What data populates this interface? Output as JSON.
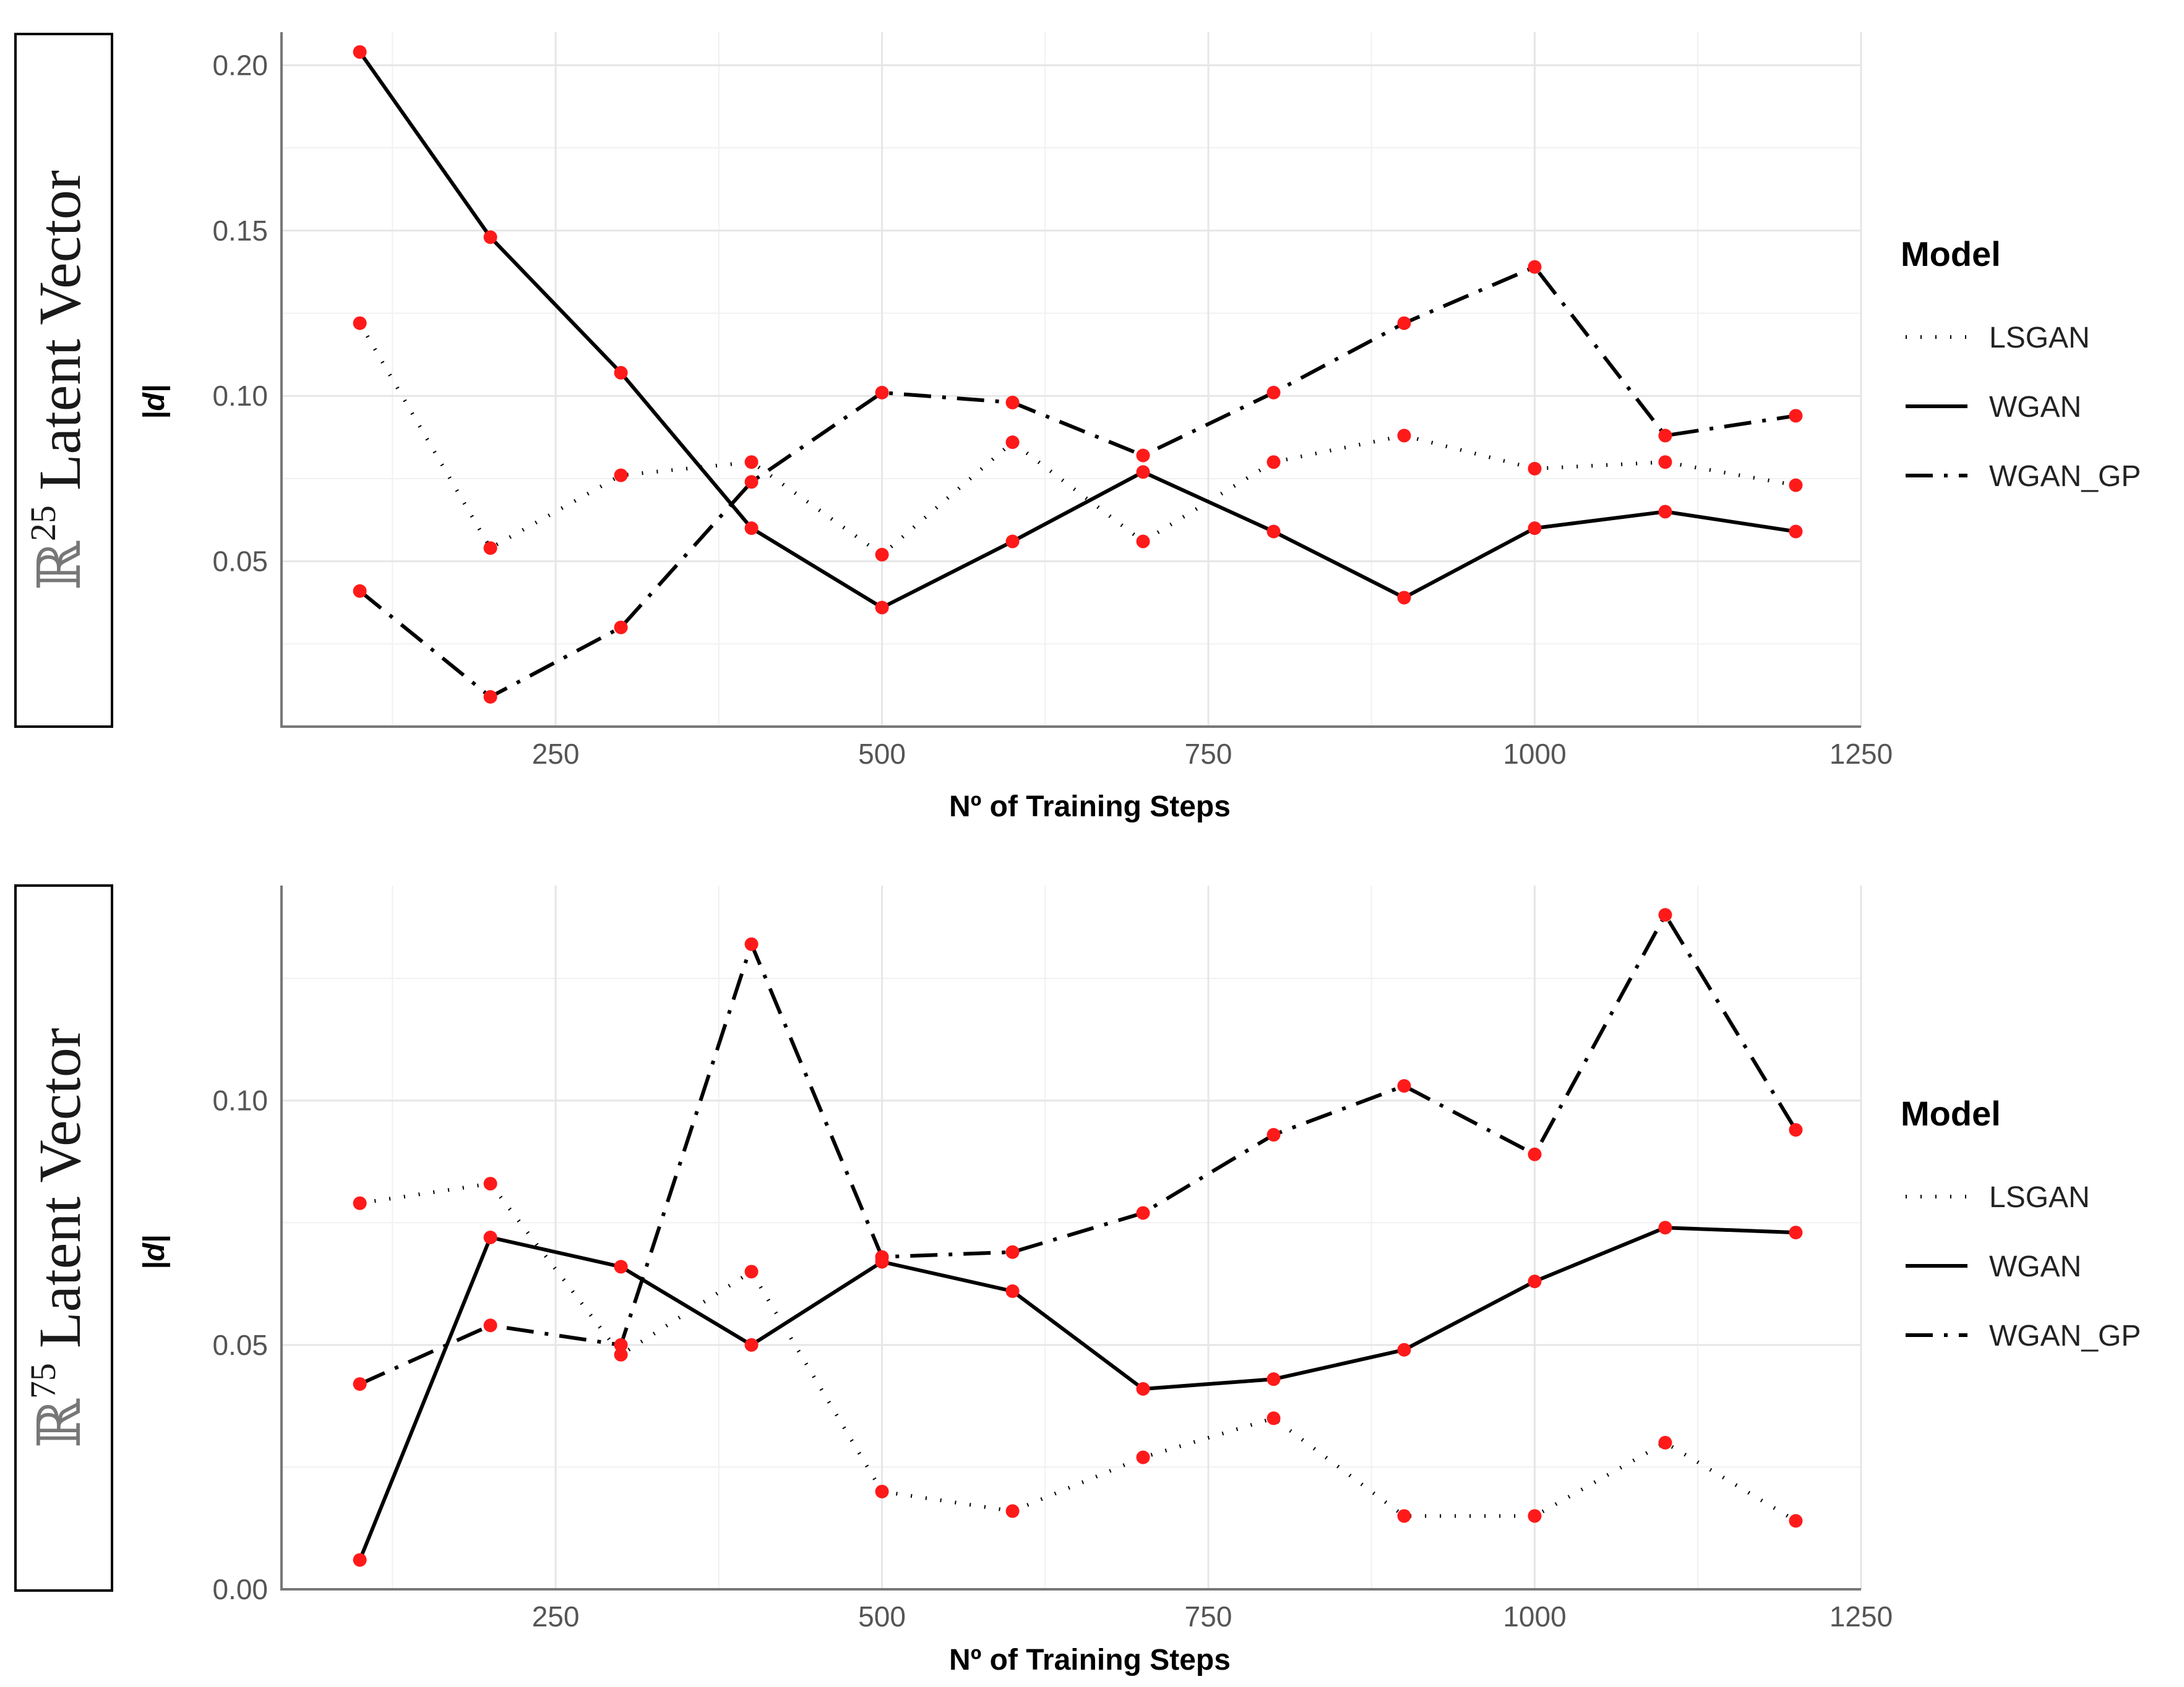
{
  "chart_data": [
    {
      "type": "line",
      "row_label": {
        "symbol": "ℝ",
        "exponent": "25",
        "text": " Latent Vector"
      },
      "title": "",
      "xlabel": "Nº of Training Steps",
      "ylabel": "|d|",
      "xlim": [
        40,
        1250
      ],
      "ylim": [
        0.0,
        0.21
      ],
      "xticks": [
        250,
        500,
        750,
        1000,
        1250
      ],
      "yticks": [
        0.05,
        0.1,
        0.15,
        0.2
      ],
      "ytick_labels": [
        "0.05",
        "0.10",
        "0.15",
        "0.20"
      ],
      "x": [
        100,
        200,
        300,
        400,
        500,
        600,
        700,
        800,
        900,
        1000,
        1100,
        1200
      ],
      "series": [
        {
          "name": "LSGAN",
          "style": "dotted",
          "values": [
            0.122,
            0.054,
            0.076,
            0.08,
            0.052,
            0.086,
            0.056,
            0.08,
            0.088,
            0.078,
            0.08,
            0.073
          ]
        },
        {
          "name": "WGAN",
          "style": "solid",
          "values": [
            0.204,
            0.148,
            0.107,
            0.06,
            0.036,
            0.056,
            0.077,
            0.059,
            0.039,
            0.06,
            0.065,
            0.059
          ]
        },
        {
          "name": "WGAN_GP",
          "style": "dashdot",
          "values": [
            0.041,
            0.009,
            0.03,
            0.074,
            0.101,
            0.098,
            0.082,
            0.101,
            0.122,
            0.139,
            0.088,
            0.094
          ]
        }
      ],
      "legend": {
        "title": "Model",
        "position": "right",
        "entries": [
          "LSGAN",
          "WGAN",
          "WGAN_GP"
        ]
      },
      "marker_color": "#ff1a1a",
      "line_color": "#000000",
      "grid": true
    },
    {
      "type": "line",
      "row_label": {
        "symbol": "ℝ",
        "exponent": "75",
        "text": " Latent Vector"
      },
      "title": "",
      "xlabel": "Nº of Training Steps",
      "ylabel": "|d|",
      "xlim": [
        40,
        1250
      ],
      "ylim": [
        0.0,
        0.144
      ],
      "xticks": [
        250,
        500,
        750,
        1000,
        1250
      ],
      "yticks": [
        0.0,
        0.05,
        0.1
      ],
      "ytick_labels": [
        "0.00",
        "0.05",
        "0.10"
      ],
      "x": [
        100,
        200,
        300,
        400,
        500,
        600,
        700,
        800,
        900,
        1000,
        1100,
        1200
      ],
      "series": [
        {
          "name": "LSGAN",
          "style": "dotted",
          "values": [
            0.079,
            0.083,
            0.048,
            0.065,
            0.02,
            0.016,
            0.027,
            0.035,
            0.015,
            0.015,
            0.03,
            0.014
          ]
        },
        {
          "name": "WGAN",
          "style": "solid",
          "values": [
            0.006,
            0.072,
            0.066,
            0.05,
            0.067,
            0.061,
            0.041,
            0.043,
            0.049,
            0.063,
            0.074,
            0.073
          ]
        },
        {
          "name": "WGAN_GP",
          "style": "dashdot",
          "values": [
            0.042,
            0.054,
            0.05,
            0.132,
            0.068,
            0.069,
            0.077,
            0.093,
            0.103,
            0.089,
            0.138,
            0.094
          ]
        }
      ],
      "legend": {
        "title": "Model",
        "position": "right",
        "entries": [
          "LSGAN",
          "WGAN",
          "WGAN_GP"
        ]
      },
      "marker_color": "#ff1a1a",
      "line_color": "#000000",
      "grid": true
    }
  ]
}
